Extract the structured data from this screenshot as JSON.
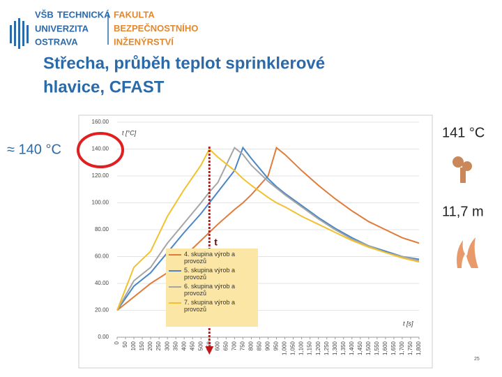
{
  "slide": {
    "logo_left": [
      "VŠB",
      "TECHNICKÁ",
      "UNIVERZITA",
      "OSTRAVA"
    ],
    "logo_right": [
      "FAKULTA",
      "BEZPEČNOSTNÍHO",
      "INŽENÝRSTVÍ"
    ],
    "title": [
      "Střecha, průběh teplot sprinklerové",
      "hlavice, CFAST"
    ],
    "approx_label": "≈ 140 °C",
    "peak_label": "141 °C",
    "height_label": "11,7 m",
    "time_marker": "t",
    "page_number": "25"
  },
  "chart_data": {
    "type": "line",
    "ylabel": "t [°C]",
    "xlabel": "t [s]",
    "x": [
      0,
      100,
      200,
      300,
      400,
      500,
      550,
      600,
      700,
      750,
      800,
      900,
      950,
      1000,
      1100,
      1200,
      1300,
      1400,
      1500,
      1600,
      1700,
      1800
    ],
    "series": [
      {
        "name": "4. skupina výrob a provozů",
        "color": "#e07b39",
        "values": [
          20,
          30,
          40,
          48,
          60,
          72,
          78,
          84,
          95,
          100,
          106,
          120,
          141,
          136,
          124,
          113,
          103,
          94,
          86,
          80,
          74,
          70
        ]
      },
      {
        "name": "5. skupina výrob a provozů",
        "color": "#4a86c5",
        "values": [
          20,
          38,
          48,
          63,
          78,
          92,
          100,
          108,
          124,
          141,
          133,
          118,
          112,
          107,
          98,
          89,
          81,
          74,
          68,
          64,
          60,
          58
        ]
      },
      {
        "name": "6. skupina výrob a provozů",
        "color": "#a5a5a5",
        "values": [
          20,
          42,
          52,
          70,
          85,
          100,
          108,
          115,
          141,
          136,
          128,
          116,
          111,
          106,
          97,
          88,
          80,
          73,
          68,
          63,
          60,
          57
        ]
      },
      {
        "name": "7. skupina výrob a provozů",
        "color": "#f2c12e",
        "values": [
          20,
          52,
          64,
          90,
          110,
          128,
          140,
          134,
          124,
          118,
          113,
          104,
          100,
          97,
          90,
          84,
          78,
          72,
          67,
          63,
          59,
          56
        ]
      }
    ],
    "xlim": [
      0,
      1800
    ],
    "ylim": [
      0,
      160
    ],
    "yticks": [
      {
        "value": 0,
        "label": "0.00"
      },
      {
        "value": 20,
        "label": "20.00"
      },
      {
        "value": 40,
        "label": "40.00"
      },
      {
        "value": 60,
        "label": "60.00"
      },
      {
        "value": 80,
        "label": "80.00"
      },
      {
        "value": 100,
        "label": "100.00"
      },
      {
        "value": 120,
        "label": "120.00"
      },
      {
        "value": 140,
        "label": "140.00"
      },
      {
        "value": 160,
        "label": "160.00"
      }
    ],
    "xticks": [
      0,
      50,
      100,
      150,
      200,
      250,
      300,
      350,
      400,
      450,
      500,
      550,
      600,
      650,
      700,
      750,
      800,
      850,
      900,
      950,
      {
        "value": 1000,
        "label": "1,000"
      },
      {
        "value": 1050,
        "label": "1,050"
      },
      {
        "value": 1100,
        "label": "1,100"
      },
      {
        "value": 1150,
        "label": "1,150"
      },
      {
        "value": 1200,
        "label": "1,200"
      },
      {
        "value": 1250,
        "label": "1,250"
      },
      {
        "value": 1300,
        "label": "1,300"
      },
      {
        "value": 1350,
        "label": "1,350"
      },
      {
        "value": 1400,
        "label": "1,400"
      },
      {
        "value": 1450,
        "label": "1,450"
      },
      {
        "value": 1500,
        "label": "1,500"
      },
      {
        "value": 1550,
        "label": "1,550"
      },
      {
        "value": 1600,
        "label": "1,600"
      },
      {
        "value": 1650,
        "label": "1,650"
      },
      {
        "value": 1700,
        "label": "1,700"
      },
      {
        "value": 1750,
        "label": "1,750"
      },
      {
        "value": 1800,
        "label": "1,800"
      }
    ],
    "marker_x": 550,
    "grid": true
  }
}
